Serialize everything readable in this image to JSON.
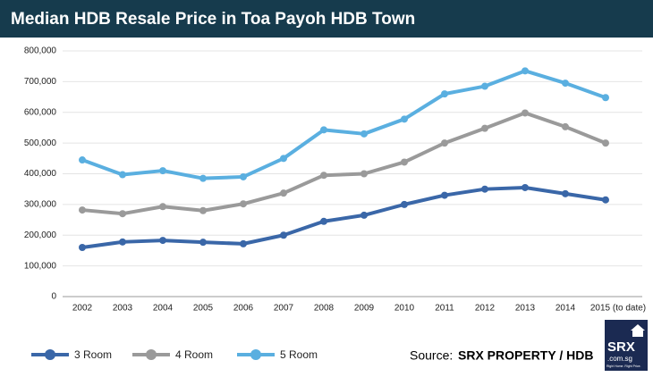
{
  "chart_data": {
    "type": "line",
    "title": "Median HDB Resale Price in Toa Payoh HDB Town",
    "categories": [
      "2002",
      "2003",
      "2004",
      "2005",
      "2006",
      "2007",
      "2008",
      "2009",
      "2010",
      "2011",
      "2012",
      "2013",
      "2014",
      "2015 (to date)"
    ],
    "series": [
      {
        "name": "3 Room",
        "color": "#3a67a8",
        "values": [
          160000,
          178000,
          183000,
          177000,
          172000,
          200000,
          245000,
          265000,
          300000,
          330000,
          350000,
          355000,
          335000,
          315000
        ]
      },
      {
        "name": "4 Room",
        "color": "#9a9a9a",
        "values": [
          282000,
          270000,
          293000,
          280000,
          302000,
          337000,
          395000,
          400000,
          438000,
          500000,
          548000,
          598000,
          553000,
          500000
        ]
      },
      {
        "name": "5 Room",
        "color": "#5aafe0",
        "values": [
          445000,
          397000,
          410000,
          385000,
          390000,
          450000,
          543000,
          530000,
          578000,
          660000,
          685000,
          735000,
          695000,
          648000
        ]
      }
    ],
    "ylim": [
      0,
      800000
    ],
    "yticks": [
      0,
      {
        "value": 100000,
        "label": "100,000"
      },
      {
        "value": 200000,
        "label": "200,000"
      },
      {
        "value": 300000,
        "label": "300,000"
      },
      {
        "value": 400000,
        "label": "400,000"
      },
      {
        "value": 500000,
        "label": "500,000"
      },
      {
        "value": 600000,
        "label": "600,000"
      },
      {
        "value": 700000,
        "label": "700,000"
      },
      {
        "value": 800000,
        "label": "800,000"
      }
    ],
    "grid": true,
    "legend": "bottom-left",
    "source": {
      "label": "Source:",
      "name": "SRX PROPERTY / HDB"
    }
  },
  "logo": {
    "text": "SRX",
    "domain": ".com.sg",
    "tagline": "Right Home. Right Price."
  }
}
